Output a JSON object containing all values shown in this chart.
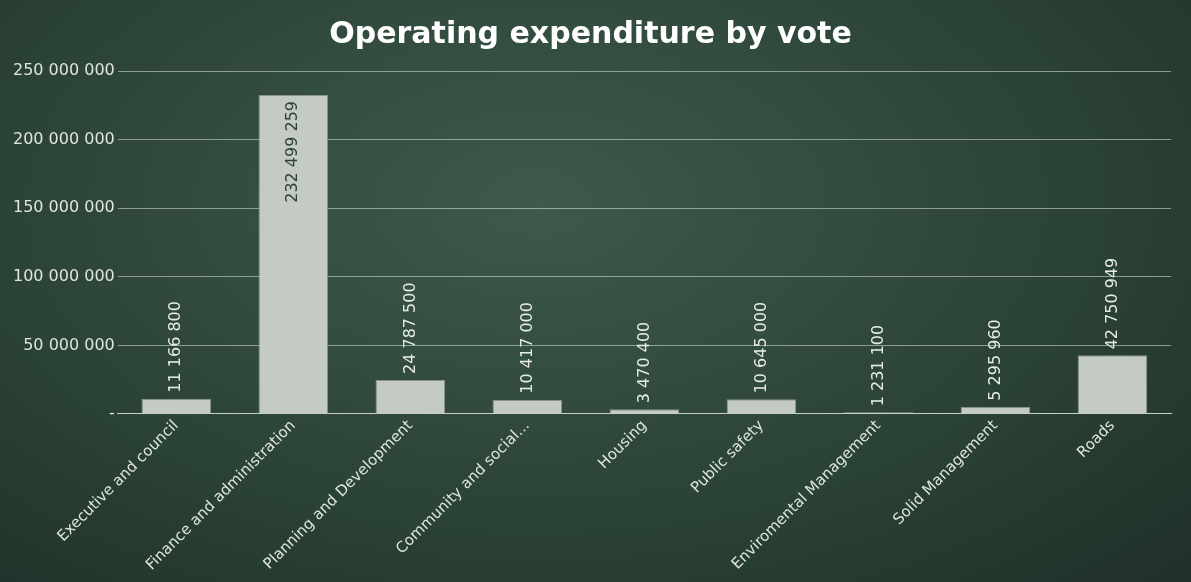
{
  "chart_data": {
    "type": "bar",
    "title": "Operating expenditure by vote",
    "categories": [
      "Executive and council",
      "Finance and administration",
      "Planning and Development",
      "Community and social...",
      "Housing",
      "Public safety",
      "Enviromental Management",
      "Solid Management",
      "Roads"
    ],
    "values": [
      11166800,
      232499259,
      24787500,
      10417000,
      3470400,
      10645000,
      1231100,
      5295960,
      42750949
    ],
    "value_labels": [
      "11 166 800",
      "232 499 259",
      "24 787 500",
      "10 417 000",
      "3 470 400",
      "10 645 000",
      "1 231 100",
      "5 295 960",
      "42 750 949"
    ],
    "color": "#c4cac4",
    "ylim": [
      0,
      250000000
    ],
    "yticks": [
      {
        "value": 0,
        "label": "-"
      },
      {
        "value": 50000000,
        "label": "50 000 000"
      },
      {
        "value": 100000000,
        "label": "100 000 000"
      },
      {
        "value": 150000000,
        "label": "150 000 000"
      },
      {
        "value": 200000000,
        "label": "200 000 000"
      },
      {
        "value": 250000000,
        "label": "250 000 000"
      }
    ],
    "grid": "y"
  }
}
